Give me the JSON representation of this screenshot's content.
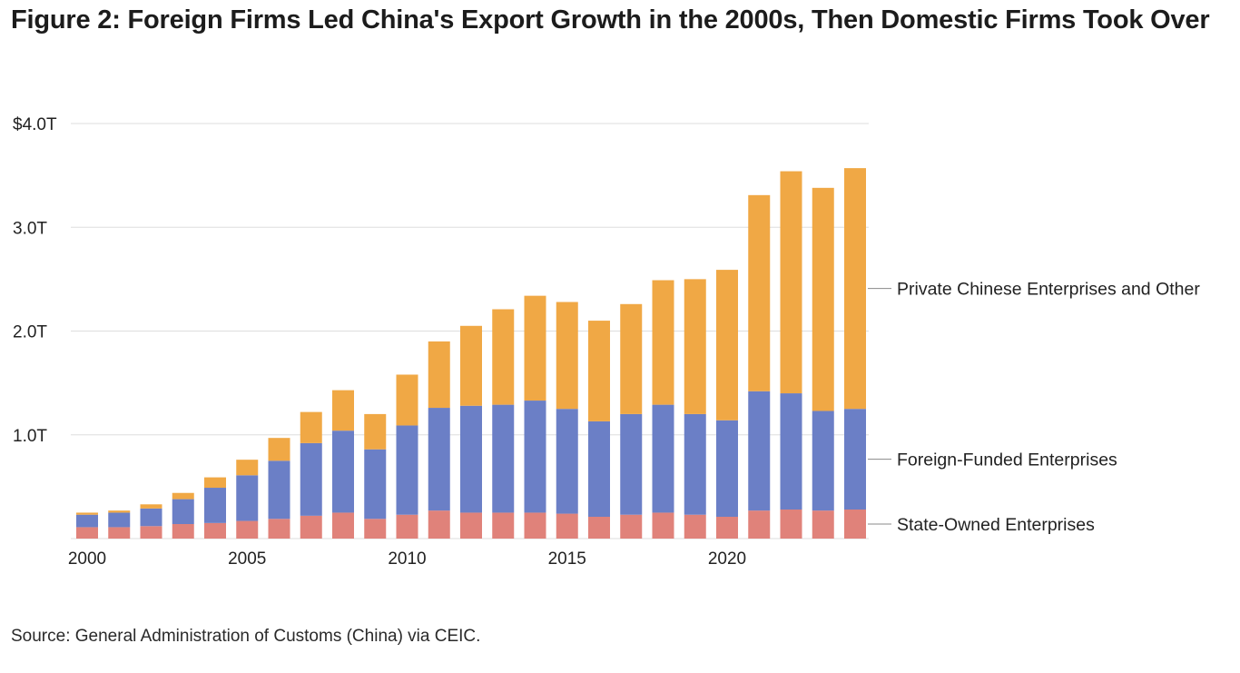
{
  "title": {
    "prefix": "Figure 2:",
    "text": "Foreign Firms Led China's Export Growth in the 2000s, Then Domestic Firms Took Over"
  },
  "source": "Source: General Administration of Customs (China) via CEIC.",
  "colors": {
    "state_owned": "#e0827a",
    "foreign_funded": "#6b7fc6",
    "private_other": "#f0a845",
    "gridline": "#dddddd",
    "leader": "#888888"
  },
  "chart_data": {
    "type": "bar",
    "stacked": true,
    "x": [
      2000,
      2001,
      2002,
      2003,
      2004,
      2005,
      2006,
      2007,
      2008,
      2009,
      2010,
      2011,
      2012,
      2013,
      2014,
      2015,
      2016,
      2017,
      2018,
      2019,
      2020,
      2021,
      2022,
      2023,
      2024
    ],
    "x_tick_labels": [
      "2000",
      "2005",
      "2010",
      "2015",
      "2020"
    ],
    "y_tick_labels": [
      "$4.0T",
      "3.0T",
      "2.0T",
      "1.0T"
    ],
    "y_ticks": [
      4.0,
      3.0,
      2.0,
      1.0
    ],
    "ylim": [
      0,
      4.0
    ],
    "grid": true,
    "legend_placement": "right, inline labels",
    "series": [
      {
        "name": "State-Owned Enterprises",
        "key": "state_owned",
        "values": [
          0.11,
          0.11,
          0.12,
          0.14,
          0.15,
          0.17,
          0.19,
          0.22,
          0.25,
          0.19,
          0.23,
          0.27,
          0.25,
          0.25,
          0.25,
          0.24,
          0.21,
          0.23,
          0.25,
          0.23,
          0.21,
          0.27,
          0.28,
          0.27,
          0.28
        ]
      },
      {
        "name": "Foreign-Funded Enterprises",
        "key": "foreign_funded",
        "values": [
          0.12,
          0.14,
          0.17,
          0.24,
          0.34,
          0.44,
          0.56,
          0.7,
          0.79,
          0.67,
          0.86,
          0.99,
          1.03,
          1.04,
          1.08,
          1.01,
          0.92,
          0.97,
          1.04,
          0.97,
          0.93,
          1.15,
          1.12,
          0.96,
          0.97
        ]
      },
      {
        "name": "Private Chinese Enterprises and Other",
        "key": "private_other",
        "values": [
          0.02,
          0.02,
          0.04,
          0.06,
          0.1,
          0.15,
          0.22,
          0.3,
          0.39,
          0.34,
          0.49,
          0.64,
          0.77,
          0.92,
          1.01,
          1.03,
          0.97,
          1.06,
          1.2,
          1.3,
          1.45,
          1.89,
          2.14,
          2.15,
          2.32
        ]
      }
    ]
  }
}
